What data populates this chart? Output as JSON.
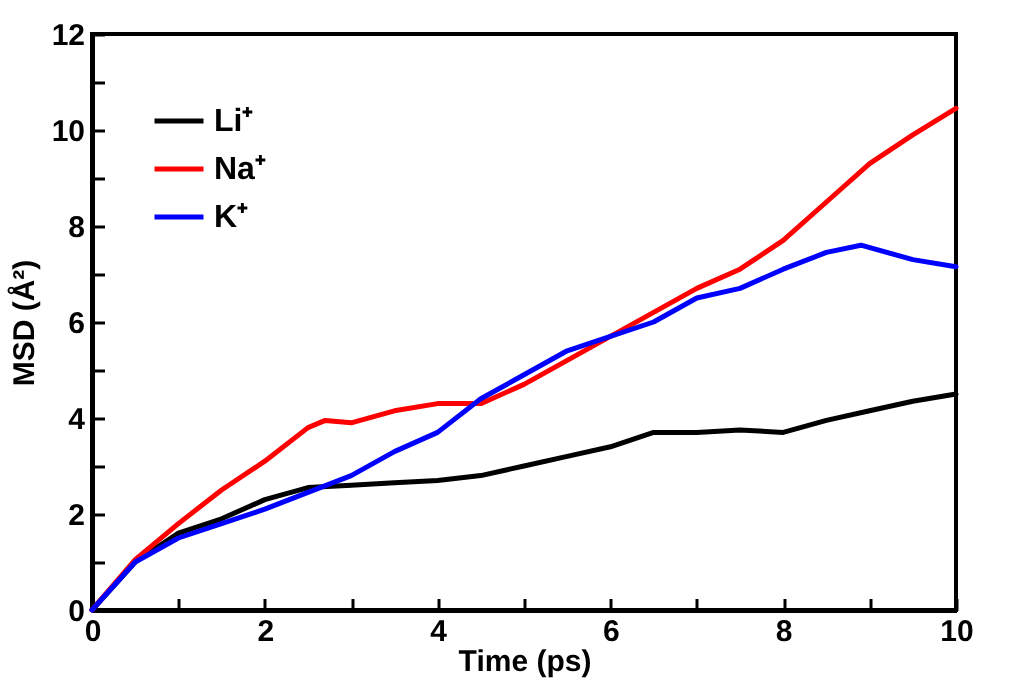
{
  "chart_data": {
    "type": "line",
    "xlabel": "Time (ps)",
    "ylabel": "MSD (Å²)",
    "xlim": [
      0,
      10
    ],
    "ylim": [
      0,
      12
    ],
    "xticks": [
      0,
      {
        "value": 1,
        "label": null
      },
      2,
      {
        "value": 3,
        "label": null
      },
      4,
      {
        "value": 5,
        "label": null
      },
      6,
      {
        "value": 7,
        "label": null
      },
      8,
      {
        "value": 9,
        "label": null
      },
      10
    ],
    "yticks": [
      0,
      {
        "value": 1,
        "label": null
      },
      2,
      {
        "value": 3,
        "label": null
      },
      4,
      {
        "value": 5,
        "label": null
      },
      6,
      {
        "value": 7,
        "label": null
      },
      8,
      {
        "value": 9,
        "label": null
      },
      10,
      {
        "value": 11,
        "label": null
      },
      12
    ],
    "legend": "top left",
    "marker": "none",
    "line_style": "solid",
    "grid": false,
    "series": [
      {
        "name": "Li⁺",
        "color": "#000000",
        "x": [
          0,
          0.5,
          1,
          1.5,
          2,
          2.5,
          3,
          3.5,
          4,
          4.5,
          5,
          5.5,
          6,
          6.5,
          7,
          7.5,
          8,
          8.5,
          9,
          9.5,
          10
        ],
        "values": [
          0,
          1.0,
          1.6,
          1.9,
          2.3,
          2.55,
          2.6,
          2.65,
          2.7,
          2.8,
          3.0,
          3.2,
          3.4,
          3.7,
          3.7,
          3.75,
          3.7,
          3.95,
          4.15,
          4.35,
          4.5
        ]
      },
      {
        "name": "Na⁺",
        "color": "#ff0000",
        "x": [
          0,
          0.5,
          1,
          1.5,
          2,
          2.5,
          2.7,
          3,
          3.5,
          4,
          4.5,
          5,
          5.5,
          6,
          6.5,
          7,
          7.5,
          8,
          8.5,
          9,
          9.5,
          10
        ],
        "values": [
          0,
          1.05,
          1.8,
          2.5,
          3.1,
          3.8,
          3.95,
          3.9,
          4.15,
          4.3,
          4.3,
          4.7,
          5.2,
          5.7,
          6.2,
          6.7,
          7.1,
          7.7,
          8.5,
          9.3,
          9.9,
          10.45
        ]
      },
      {
        "name": "K⁺",
        "color": "#0000ff",
        "x": [
          0,
          0.5,
          1,
          1.5,
          2,
          2.5,
          3,
          3.5,
          4,
          4.5,
          5,
          5.5,
          6,
          6.5,
          7,
          7.5,
          8,
          8.5,
          8.9,
          9.5,
          10
        ],
        "values": [
          0,
          1.0,
          1.5,
          1.8,
          2.1,
          2.45,
          2.8,
          3.3,
          3.7,
          4.4,
          4.9,
          5.4,
          5.7,
          6.0,
          6.5,
          6.7,
          7.1,
          7.45,
          7.6,
          7.3,
          7.15
        ]
      }
    ]
  }
}
